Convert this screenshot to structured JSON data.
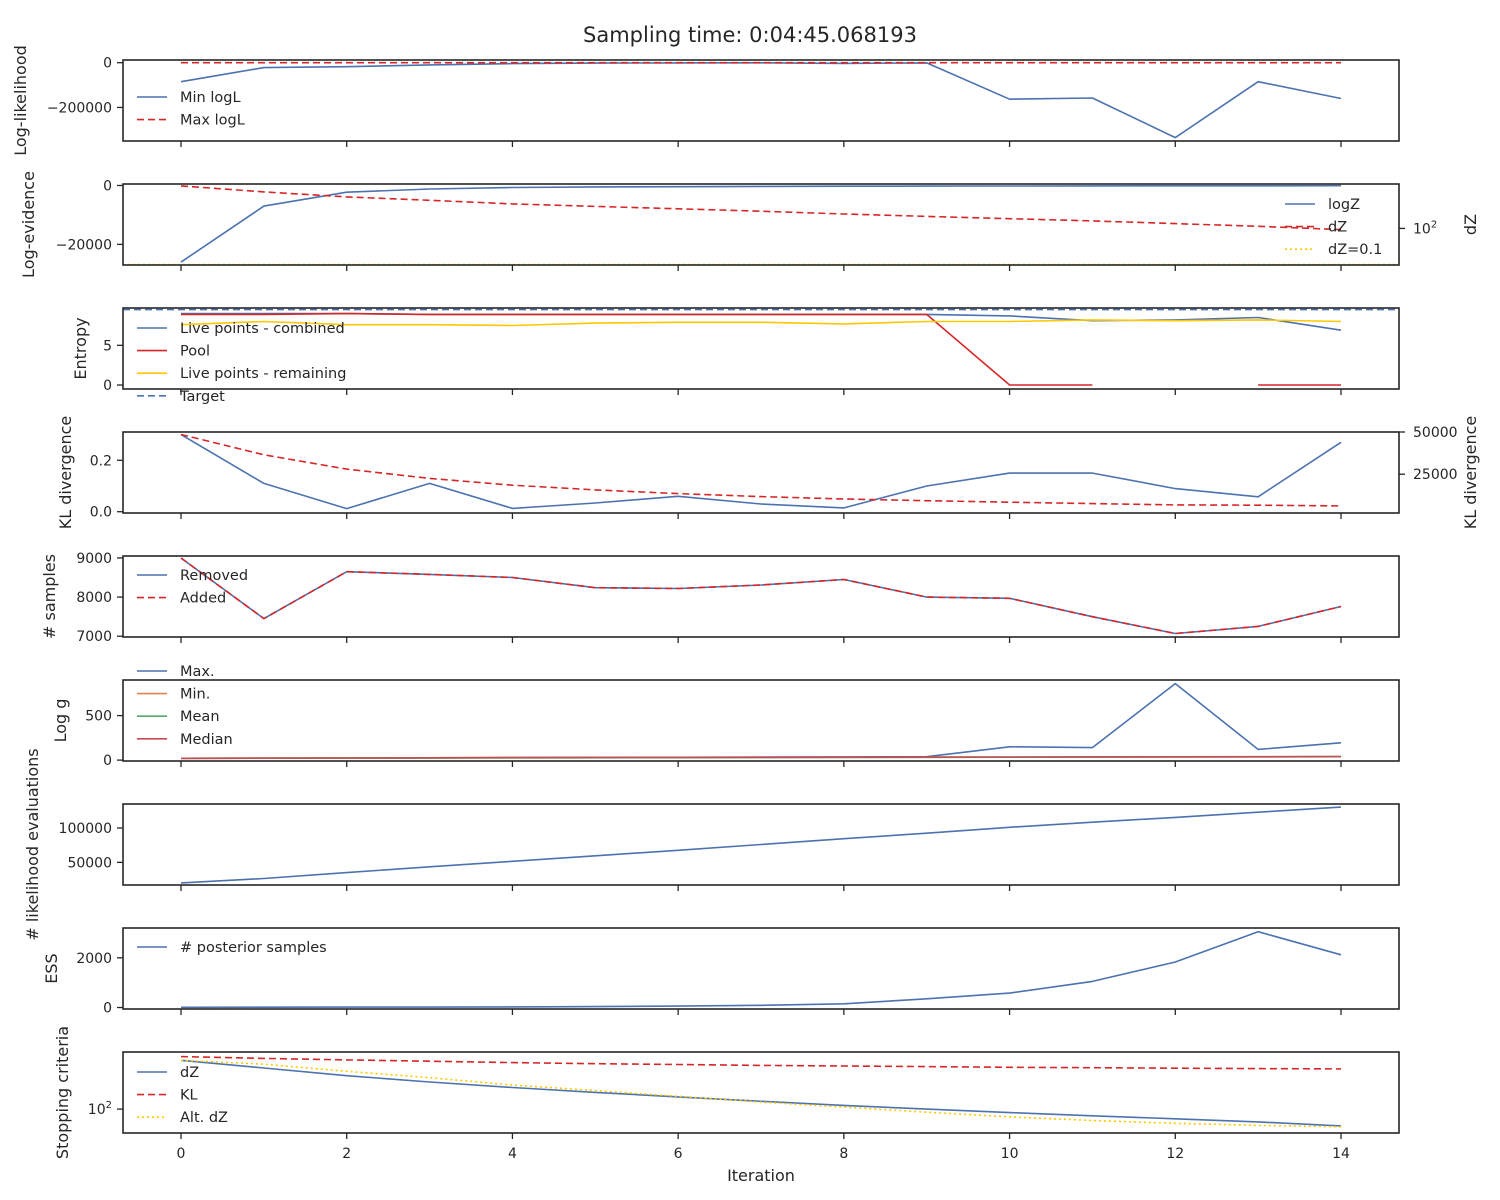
{
  "chart_data": [
    {
      "type": "line",
      "title": "Sampling time: 0:04:45.068193",
      "ylabel": "Log-likelihood",
      "xlim": [
        -0.7,
        14.7
      ],
      "ylim": [
        -350000,
        12000
      ],
      "yticks": [
        0,
        -200000
      ],
      "ytick_labels": [
        "0",
        "−200000"
      ],
      "legend": "upper-left",
      "series": [
        {
          "name": "Min logL",
          "color": "#4c72b0",
          "dash": "solid",
          "x": [
            0,
            1,
            2,
            3,
            4,
            5,
            6,
            7,
            8,
            9,
            10,
            11,
            12,
            13,
            14
          ],
          "y": [
            -85000,
            -22000,
            -18000,
            -10000,
            -4000,
            -2000,
            -1000,
            -500,
            -3000,
            -1000,
            -163000,
            -158000,
            -335000,
            -85000,
            -160000
          ]
        },
        {
          "name": "Max logL",
          "color": "#d62728",
          "dash": "dashed",
          "x": [
            0,
            14
          ],
          "y": [
            0,
            0
          ]
        }
      ]
    },
    {
      "type": "line",
      "ylabel": "Log-evidence",
      "ylabel_right": "dZ",
      "xlim": [
        -0.7,
        14.7
      ],
      "ylim": [
        -27000,
        500
      ],
      "yticks": [
        0,
        -20000
      ],
      "ytick_labels": [
        "0",
        "−20000"
      ],
      "right_ticks": [
        {
          "label": "10",
          "exp": "2",
          "value": 100
        }
      ],
      "right_scale": "log",
      "right_ylim": [
        0.09,
        500000
      ],
      "legend": "right",
      "series": [
        {
          "name": "logZ",
          "color": "#4c72b0",
          "dash": "solid",
          "axis": "left",
          "x": [
            0,
            1,
            2,
            3,
            4,
            5,
            6,
            7,
            8,
            9,
            10,
            11,
            12,
            13,
            14
          ],
          "y": [
            -26000,
            -7000,
            -2300,
            -1200,
            -700,
            -500,
            -400,
            -300,
            -250,
            -200,
            -180,
            -150,
            -120,
            -100,
            -80
          ]
        },
        {
          "name": "dZ",
          "color": "#d62728",
          "dash": "dashed",
          "axis": "right",
          "x": [
            0,
            1,
            2,
            3,
            4,
            5,
            6,
            7,
            8,
            9,
            10,
            11,
            12,
            13,
            14
          ],
          "y": [
            350000,
            110000,
            42000,
            22000,
            11000,
            6800,
            4300,
            2700,
            1600,
            1000,
            650,
            420,
            250,
            150,
            80
          ]
        },
        {
          "name": "dZ=0.1",
          "color": "#ffc800",
          "dash": "dotted",
          "axis": "right",
          "x": [
            -0.7,
            14.7
          ],
          "y": [
            0.1,
            0.1
          ]
        }
      ]
    },
    {
      "type": "line",
      "ylabel": "Entropy",
      "xlim": [
        -0.7,
        14.7
      ],
      "ylim": [
        -0.5,
        9.7
      ],
      "yticks": [
        0,
        5
      ],
      "ytick_labels": [
        "0",
        "5"
      ],
      "legend": "upper-left",
      "series": [
        {
          "name": "Live points - combined",
          "color": "#4c72b0",
          "dash": "solid",
          "x": [
            0,
            1,
            2,
            3,
            4,
            5,
            6,
            7,
            8,
            9,
            10,
            11,
            12,
            13,
            14
          ],
          "y": [
            9.0,
            9.0,
            9.0,
            8.9,
            8.9,
            8.9,
            8.9,
            8.9,
            8.9,
            8.9,
            8.7,
            8.1,
            8.2,
            8.5,
            6.9
          ]
        },
        {
          "name": "Pool",
          "color": "#d62728",
          "dash": "solid",
          "x": [
            0,
            1,
            2,
            3,
            4,
            5,
            6,
            7,
            8,
            9,
            10,
            11
          ],
          "y": [
            8.9,
            8.9,
            9.0,
            8.9,
            8.9,
            8.9,
            8.9,
            8.9,
            8.9,
            8.9,
            0,
            0
          ]
        },
        {
          "name": "Live points - remaining",
          "color": "#ffc800",
          "dash": "solid",
          "x": [
            0,
            1,
            2,
            3,
            4,
            5,
            6,
            7,
            8,
            9,
            10,
            11,
            12,
            13,
            14
          ],
          "y": [
            7.6,
            8.0,
            7.6,
            7.6,
            7.5,
            7.8,
            7.9,
            7.9,
            7.7,
            8.0,
            8.0,
            8.2,
            8.1,
            8.2,
            8.0
          ]
        },
        {
          "name": "Target",
          "color": "#4c72b0",
          "dash": "dashed",
          "x": [
            -0.7,
            14.7
          ],
          "y": [
            9.5,
            9.5
          ]
        },
        {
          "name": "",
          "color": "#d62728",
          "dash": "solid",
          "x": [
            13,
            14
          ],
          "y": [
            0,
            0
          ]
        }
      ]
    },
    {
      "type": "line",
      "ylabel": "KL divergence",
      "ylabel_right": "KL divergence",
      "xlim": [
        -0.7,
        14.7
      ],
      "ylim": [
        -0.005,
        0.31
      ],
      "yticks": [
        0.0,
        0.2
      ],
      "ytick_labels": [
        "0.0",
        "0.2"
      ],
      "right_ylim": [
        2000,
        50000
      ],
      "right_ticks": [
        {
          "label": "50000",
          "value": 50000
        },
        {
          "label": "25000",
          "value": 25000
        }
      ],
      "series": [
        {
          "name": "",
          "color": "#4c72b0",
          "dash": "solid",
          "axis": "left",
          "x": [
            0,
            1,
            2,
            3,
            4,
            5,
            6,
            7,
            8,
            9,
            10,
            11,
            12,
            13,
            14
          ],
          "y": [
            0.3,
            0.11,
            0.012,
            0.11,
            0.013,
            0.034,
            0.06,
            0.03,
            0.015,
            0.1,
            0.15,
            0.15,
            0.09,
            0.058,
            0.27
          ]
        },
        {
          "name": "",
          "color": "#d62728",
          "dash": "dashed",
          "axis": "right",
          "x": [
            0,
            1,
            2,
            3,
            4,
            5,
            6,
            7,
            8,
            9,
            10,
            11,
            12,
            13,
            14
          ],
          "y": [
            48500,
            36500,
            28000,
            22500,
            18500,
            15700,
            13500,
            11700,
            10300,
            9300,
            8400,
            7600,
            6800,
            6600,
            6200
          ]
        }
      ]
    },
    {
      "type": "line",
      "ylabel": "# samples",
      "xlim": [
        -0.7,
        14.7
      ],
      "ylim": [
        6980,
        9050
      ],
      "yticks": [
        9000,
        8000,
        7000
      ],
      "ytick_labels": [
        "9000",
        "8000",
        "7000"
      ],
      "legend": "upper-left",
      "series": [
        {
          "name": "Removed",
          "color": "#4c72b0",
          "dash": "solid",
          "x": [
            0,
            1,
            2,
            3,
            4,
            5,
            6,
            7,
            8,
            9,
            10,
            11,
            12,
            13,
            14
          ],
          "y": [
            9000,
            7450,
            8650,
            8580,
            8500,
            8240,
            8220,
            8310,
            8450,
            8000,
            7970,
            7500,
            7070,
            7250,
            7760
          ]
        },
        {
          "name": "Added",
          "color": "#d62728",
          "dash": "dashed",
          "x": [
            0,
            1,
            2,
            3,
            4,
            5,
            6,
            7,
            8,
            9,
            10,
            11,
            12,
            13,
            14
          ],
          "y": [
            9000,
            7450,
            8650,
            8580,
            8500,
            8240,
            8220,
            8310,
            8450,
            8000,
            7970,
            7500,
            7070,
            7250,
            7760
          ]
        }
      ]
    },
    {
      "type": "line",
      "ylabel": "Log g",
      "xlim": [
        -0.7,
        14.7
      ],
      "ylim": [
        -10,
        900
      ],
      "yticks": [
        500,
        0
      ],
      "ytick_labels": [
        "500",
        "0"
      ],
      "legend": "upper-left",
      "series": [
        {
          "name": "Max.",
          "color": "#4c72b0",
          "dash": "solid",
          "x": [
            0,
            1,
            2,
            3,
            4,
            5,
            6,
            7,
            8,
            9,
            10,
            11,
            12,
            13,
            14
          ],
          "y": [
            20,
            22,
            24,
            26,
            28,
            30,
            32,
            34,
            36,
            38,
            150,
            140,
            860,
            120,
            195
          ]
        },
        {
          "name": "Min.",
          "color": "#dd8452",
          "dash": "solid",
          "x": [
            0,
            14
          ],
          "y": [
            20,
            38
          ]
        },
        {
          "name": "Mean",
          "color": "#55a868",
          "dash": "solid",
          "x": [
            0,
            14
          ],
          "y": [
            20,
            38
          ]
        },
        {
          "name": "Median",
          "color": "#c44e52",
          "dash": "solid",
          "x": [
            0,
            1,
            2,
            3,
            4,
            5,
            6,
            7,
            8,
            9,
            10,
            11,
            12,
            13,
            14
          ],
          "y": [
            20,
            22,
            24,
            26,
            28,
            30,
            31,
            32,
            33,
            34,
            35,
            36,
            37,
            38,
            40
          ]
        }
      ]
    },
    {
      "type": "line",
      "ylabel": "# likelihood evaluations",
      "xlim": [
        -0.7,
        14.7
      ],
      "ylim": [
        17000,
        135000
      ],
      "yticks": [
        100000,
        50000
      ],
      "ytick_labels": [
        "100000",
        "50000"
      ],
      "series": [
        {
          "name": "",
          "color": "#4c72b0",
          "dash": "solid",
          "x": [
            0,
            1,
            2,
            3,
            4,
            5,
            6,
            7,
            8,
            9,
            10,
            11,
            12,
            13,
            14
          ],
          "y": [
            20000,
            26500,
            35000,
            43500,
            51500,
            59500,
            67500,
            76000,
            84500,
            92500,
            101000,
            108500,
            115500,
            123000,
            130500
          ]
        }
      ]
    },
    {
      "type": "line",
      "ylabel": "ESS",
      "xlim": [
        -0.7,
        14.7
      ],
      "ylim": [
        -60,
        3200
      ],
      "yticks": [
        2000,
        0
      ],
      "ytick_labels": [
        "2000",
        "0"
      ],
      "legend": "upper-left",
      "series": [
        {
          "name": "# posterior samples",
          "color": "#4c72b0",
          "dash": "solid",
          "x": [
            0,
            1,
            2,
            3,
            4,
            5,
            6,
            7,
            8,
            9,
            10,
            11,
            12,
            13,
            14
          ],
          "y": [
            10,
            12,
            15,
            18,
            25,
            35,
            55,
            90,
            150,
            350,
            580,
            1050,
            1830,
            3050,
            2120
          ]
        }
      ]
    },
    {
      "type": "line",
      "ylabel": "Stopping criteria",
      "xlabel": "Iteration",
      "xlim": [
        -0.7,
        14.7
      ],
      "scale": "log",
      "ylim": [
        18,
        6000
      ],
      "yticks": [
        100
      ],
      "ytick_labels": [
        {
          "label": "10",
          "exp": "2"
        }
      ],
      "xticks": [
        0,
        2,
        4,
        6,
        8,
        10,
        12,
        14
      ],
      "xtick_labels": [
        "0",
        "2",
        "4",
        "6",
        "8",
        "10",
        "12",
        "14"
      ],
      "legend": "upper-left",
      "series": [
        {
          "name": "dZ",
          "color": "#4c72b0",
          "dash": "solid",
          "x": [
            0,
            1,
            2,
            3,
            4,
            5,
            6,
            7,
            8,
            9,
            10,
            11,
            12,
            13,
            14
          ],
          "y": [
            3300,
            1900,
            1100,
            700,
            470,
            330,
            240,
            175,
            130,
            100,
            78,
            62,
            50,
            40,
            30
          ]
        },
        {
          "name": "KL",
          "color": "#d62728",
          "dash": "dashed",
          "x": [
            0,
            1,
            2,
            3,
            4,
            5,
            6,
            7,
            8,
            9,
            10,
            11,
            12,
            13,
            14
          ],
          "y": [
            4300,
            3800,
            3400,
            3100,
            2800,
            2600,
            2450,
            2300,
            2200,
            2100,
            2000,
            1950,
            1880,
            1820,
            1780
          ]
        },
        {
          "name": "Alt. dZ",
          "color": "#ffc800",
          "dash": "dotted",
          "x": [
            0,
            1,
            2,
            3,
            4,
            5,
            6,
            7,
            8,
            9,
            10,
            11,
            12,
            13,
            14
          ],
          "y": [
            3300,
            2500,
            1500,
            950,
            560,
            380,
            250,
            165,
            115,
            80,
            57,
            44,
            36,
            31,
            28
          ]
        }
      ]
    }
  ]
}
